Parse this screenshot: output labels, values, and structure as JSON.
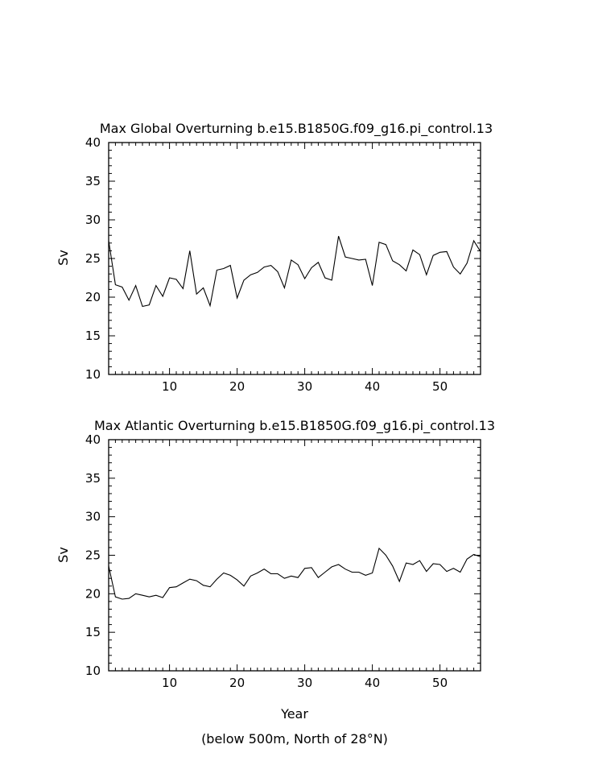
{
  "chart_data": [
    {
      "type": "line",
      "title": "Max Global Overturning b.e15.B1850G.f09_g16.pi_control.13",
      "xlabel": "",
      "ylabel": "Sv",
      "xlim": [
        1,
        56
      ],
      "ylim": [
        10,
        40
      ],
      "xticks": [
        10,
        20,
        30,
        40,
        50
      ],
      "yticks": [
        10,
        15,
        20,
        25,
        30,
        35,
        40
      ],
      "grid": false,
      "series": [
        {
          "x": [
            1,
            2,
            3,
            4,
            5,
            6,
            7,
            8,
            9,
            10,
            11,
            12,
            13,
            14,
            15,
            16,
            17,
            18,
            19,
            20,
            21,
            22,
            23,
            24,
            25,
            26,
            27,
            28,
            29,
            30,
            31,
            32,
            33,
            34,
            35,
            36,
            37,
            38,
            39,
            40,
            41,
            42,
            43,
            44,
            45,
            46,
            47,
            48,
            49,
            50,
            51,
            52,
            53,
            54,
            55,
            56
          ],
          "values": [
            27.3,
            21.6,
            21.3,
            19.6,
            21.5,
            18.8,
            19.0,
            21.5,
            20.1,
            22.5,
            22.3,
            21.1,
            26.0,
            20.4,
            21.2,
            18.9,
            23.5,
            23.7,
            24.1,
            19.9,
            22.2,
            22.9,
            23.2,
            23.9,
            24.1,
            23.3,
            21.2,
            24.8,
            24.2,
            22.4,
            23.8,
            24.5,
            22.5,
            22.2,
            27.9,
            25.2,
            25.0,
            24.8,
            24.9,
            21.5,
            27.1,
            26.8,
            24.7,
            24.2,
            23.4,
            26.1,
            25.5,
            22.9,
            25.4,
            25.8,
            25.9,
            23.9,
            23.0,
            24.4,
            27.3,
            25.9
          ]
        }
      ]
    },
    {
      "type": "line",
      "title": "Max Atlantic Overturning b.e15.B1850G.f09_g16.pi_control.13",
      "xlabel": "Year",
      "ylabel": "Sv",
      "xlim": [
        1,
        56
      ],
      "ylim": [
        10,
        40
      ],
      "xticks": [
        10,
        20,
        30,
        40,
        50
      ],
      "yticks": [
        10,
        15,
        20,
        25,
        30,
        35,
        40
      ],
      "grid": false,
      "series": [
        {
          "x": [
            1,
            2,
            3,
            4,
            5,
            6,
            7,
            8,
            9,
            10,
            11,
            12,
            13,
            14,
            15,
            16,
            17,
            18,
            19,
            20,
            21,
            22,
            23,
            24,
            25,
            26,
            27,
            28,
            29,
            30,
            31,
            32,
            33,
            34,
            35,
            36,
            37,
            38,
            39,
            40,
            41,
            42,
            43,
            44,
            45,
            46,
            47,
            48,
            49,
            50,
            51,
            52,
            53,
            54,
            55,
            56
          ],
          "values": [
            23.6,
            19.6,
            19.3,
            19.4,
            20.0,
            19.8,
            19.6,
            19.8,
            19.5,
            20.8,
            20.9,
            21.4,
            21.9,
            21.7,
            21.1,
            20.9,
            21.9,
            22.7,
            22.4,
            21.8,
            21.0,
            22.3,
            22.7,
            23.2,
            22.6,
            22.6,
            22.0,
            22.3,
            22.1,
            23.3,
            23.4,
            22.1,
            22.8,
            23.5,
            23.8,
            23.2,
            22.8,
            22.8,
            22.4,
            22.7,
            25.9,
            25.0,
            23.6,
            21.6,
            24.0,
            23.8,
            24.3,
            22.9,
            23.9,
            23.8,
            22.9,
            23.3,
            22.8,
            24.5,
            25.1,
            24.8
          ]
        }
      ]
    }
  ],
  "footnote": "(below 500m, North of 28°N)"
}
